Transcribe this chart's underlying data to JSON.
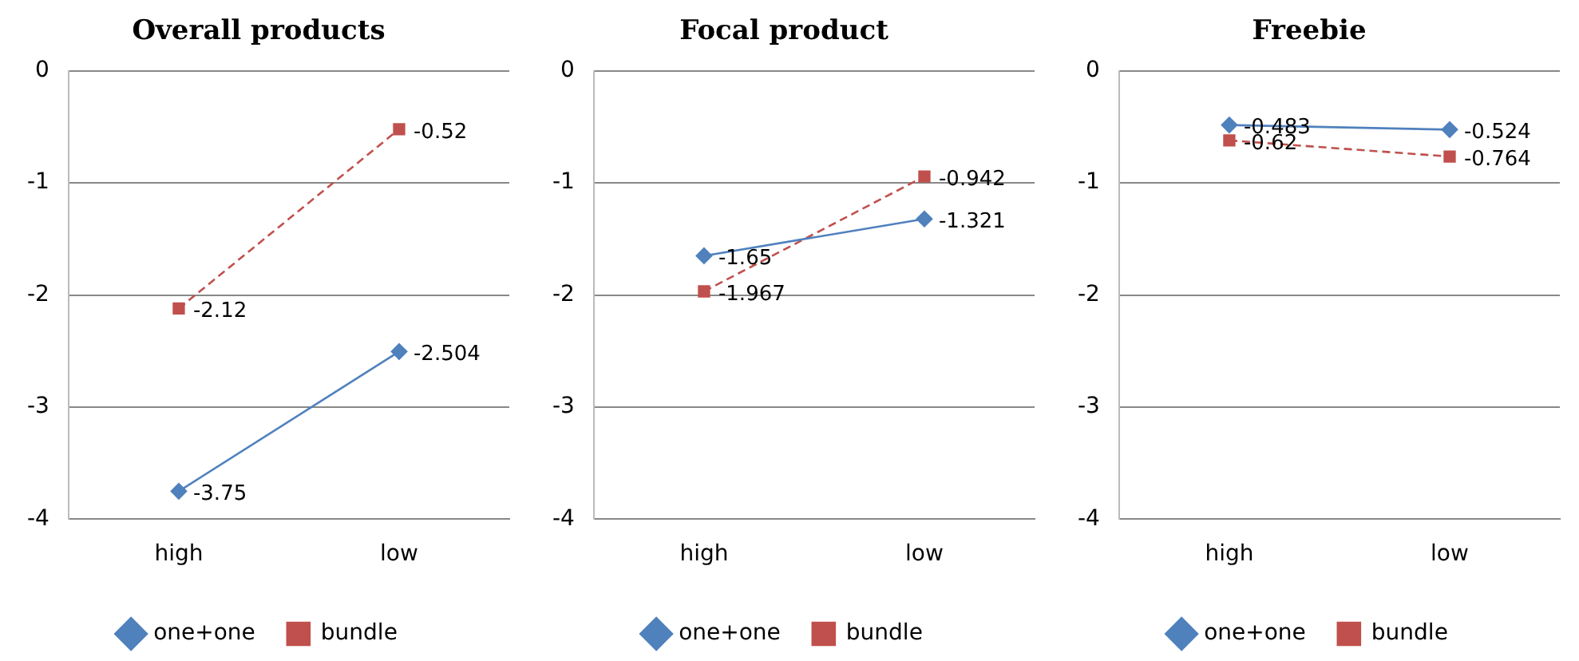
{
  "chart_data": [
    {
      "type": "line",
      "title": "Overall products",
      "categories": [
        "high",
        "low"
      ],
      "series": [
        {
          "name": "one+one",
          "color": "#4f81bd",
          "values": [
            -3.75,
            -2.504
          ],
          "marker": "diamond",
          "line_style": "solid"
        },
        {
          "name": "bundle",
          "color": "#c0504d",
          "values": [
            -2.12,
            -0.52
          ],
          "marker": "square",
          "line_style": "dashed"
        }
      ],
      "ylim": [
        -4,
        0
      ],
      "yticks": [
        -4,
        -3,
        -2,
        -1,
        0
      ],
      "grid": "y",
      "legend": "bottom",
      "data_labels": true
    },
    {
      "type": "line",
      "title": "Focal product",
      "categories": [
        "high",
        "low"
      ],
      "series": [
        {
          "name": "one+one",
          "color": "#4f81bd",
          "values": [
            -1.65,
            -1.321
          ],
          "marker": "diamond",
          "line_style": "solid"
        },
        {
          "name": "bundle",
          "color": "#c0504d",
          "values": [
            -1.967,
            -0.942
          ],
          "marker": "square",
          "line_style": "dashed"
        }
      ],
      "ylim": [
        -4,
        0
      ],
      "yticks": [
        -4,
        -3,
        -2,
        -1,
        0
      ],
      "grid": "y",
      "legend": "bottom",
      "data_labels": true
    },
    {
      "type": "line",
      "title": "Freebie",
      "categories": [
        "high",
        "low"
      ],
      "series": [
        {
          "name": "one+one",
          "color": "#4f81bd",
          "values": [
            -0.483,
            -0.524
          ],
          "marker": "diamond",
          "line_style": "solid"
        },
        {
          "name": "bundle",
          "color": "#c0504d",
          "values": [
            -0.62,
            -0.764
          ],
          "marker": "square",
          "line_style": "dashed"
        }
      ],
      "ylim": [
        -4,
        0
      ],
      "yticks": [
        -4,
        -3,
        -2,
        -1,
        0
      ],
      "grid": "y",
      "legend": "bottom",
      "data_labels": true
    }
  ]
}
